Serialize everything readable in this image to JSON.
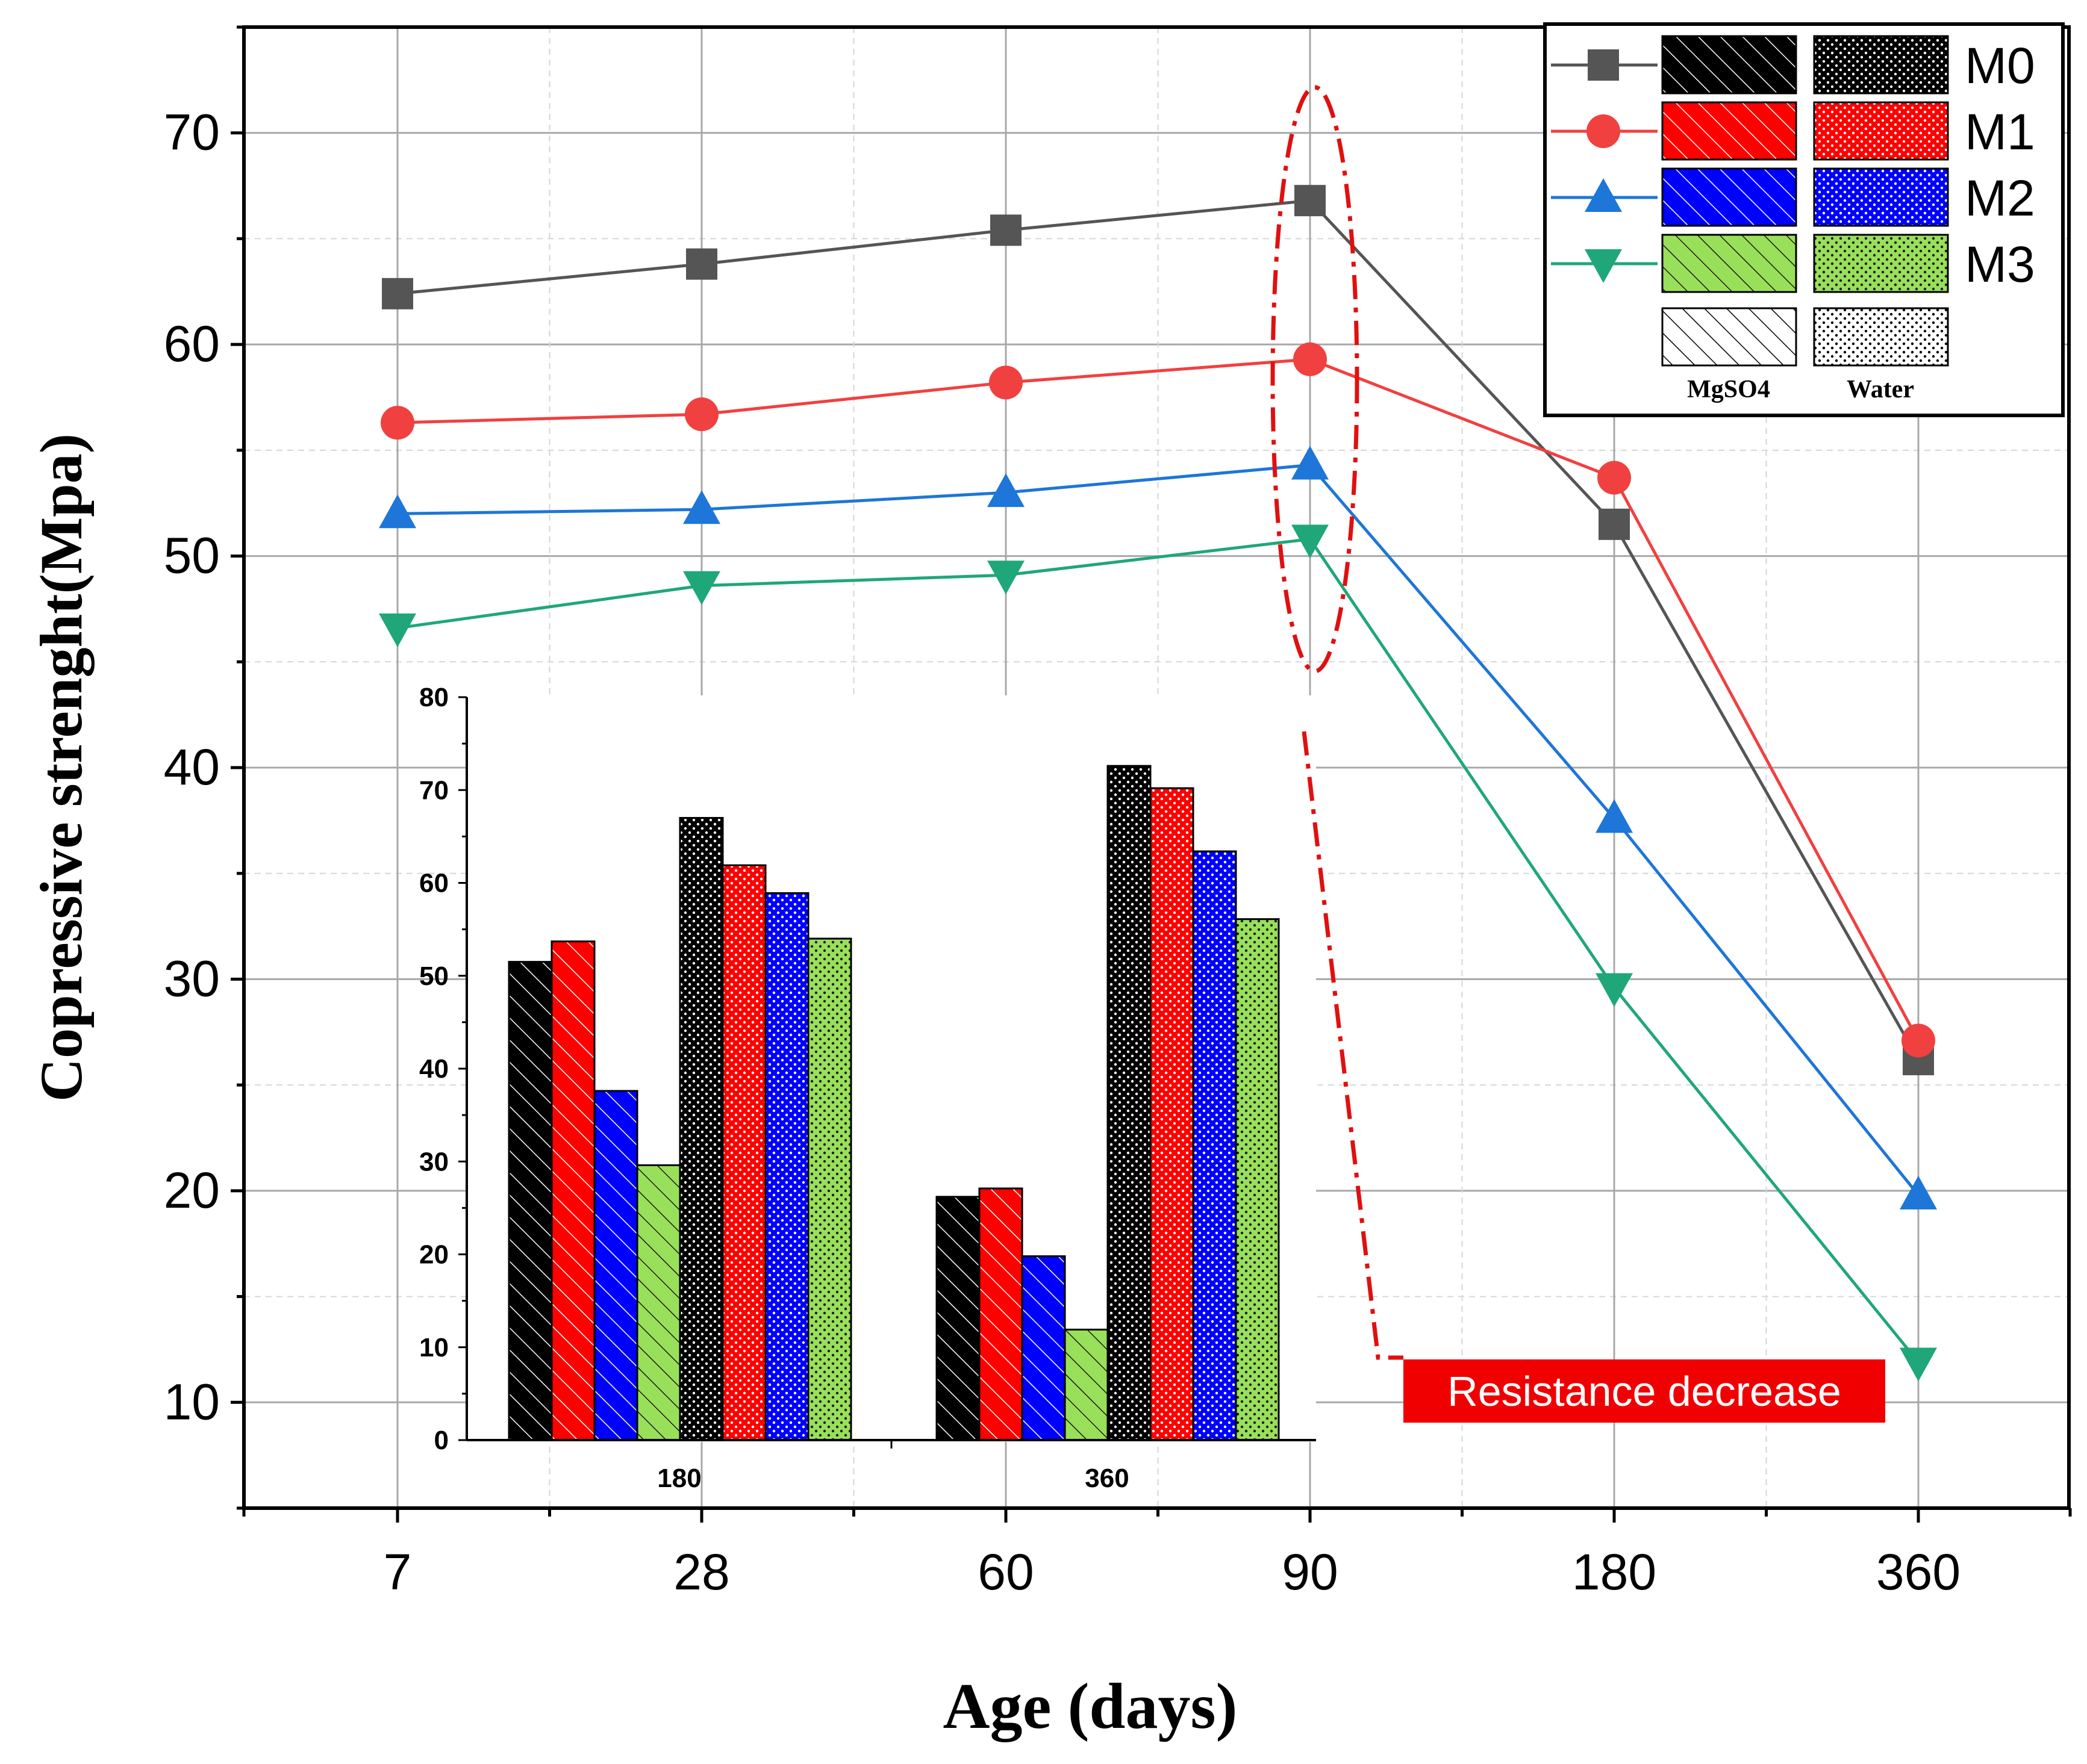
{
  "chart_data": {
    "type": "line",
    "title": "",
    "xlabel": "Age (days)",
    "ylabel": "Copressive strenght(Mpa)",
    "categories": [
      "7",
      "28",
      "60",
      "90",
      "180",
      "360"
    ],
    "ylim": [
      5,
      75
    ],
    "yticks": [
      "10",
      "20",
      "30",
      "40",
      "50",
      "60",
      "70"
    ],
    "grid": true,
    "legend_position": "top-right",
    "series": [
      {
        "name": "M0",
        "color": "#555555",
        "marker": "square",
        "values": [
          62.4,
          63.8,
          65.4,
          66.8,
          51.5,
          26.2
        ]
      },
      {
        "name": "M1",
        "color": "#f14040",
        "marker": "circle",
        "values": [
          56.3,
          56.7,
          58.2,
          59.3,
          53.7,
          27.1
        ]
      },
      {
        "name": "M2",
        "color": "#1d76d8",
        "marker": "triangle-up",
        "values": [
          52.0,
          52.2,
          53.0,
          54.3,
          37.6,
          19.8
        ]
      },
      {
        "name": "M3",
        "color": "#1fa77a",
        "marker": "triangle-down",
        "values": [
          46.6,
          48.6,
          49.1,
          50.8,
          29.6,
          11.9
        ]
      }
    ],
    "annotation": "Resistance decrease",
    "inset": {
      "type": "bar",
      "categories": [
        "180",
        "360"
      ],
      "ylim": [
        0,
        80
      ],
      "yticks": [
        "0",
        "10",
        "20",
        "30",
        "40",
        "50",
        "60",
        "70",
        "80"
      ],
      "legend_headers": [
        "MgSO4",
        "Water"
      ],
      "series": [
        {
          "name": "M0 MgSO4",
          "color": "#000000",
          "pattern": "hatch",
          "values": [
            51.5,
            26.2
          ]
        },
        {
          "name": "M1 MgSO4",
          "color": "#ff0000",
          "pattern": "hatch",
          "values": [
            53.7,
            27.1
          ]
        },
        {
          "name": "M2 MgSO4",
          "color": "#0000ff",
          "pattern": "hatch",
          "values": [
            37.6,
            19.8
          ]
        },
        {
          "name": "M3 MgSO4",
          "color": "#99e05a",
          "pattern": "hatch",
          "values": [
            29.6,
            11.9
          ]
        },
        {
          "name": "M0 Water",
          "color": "#000000",
          "pattern": "dots",
          "values": [
            67.0,
            72.6
          ]
        },
        {
          "name": "M1 Water",
          "color": "#ff0000",
          "pattern": "dots",
          "values": [
            61.9,
            70.2
          ]
        },
        {
          "name": "M2 Water",
          "color": "#0000ff",
          "pattern": "dots",
          "values": [
            58.9,
            63.4
          ]
        },
        {
          "name": "M3 Water",
          "color": "#99e05a",
          "pattern": "dots",
          "values": [
            54.0,
            56.1
          ]
        }
      ]
    }
  }
}
